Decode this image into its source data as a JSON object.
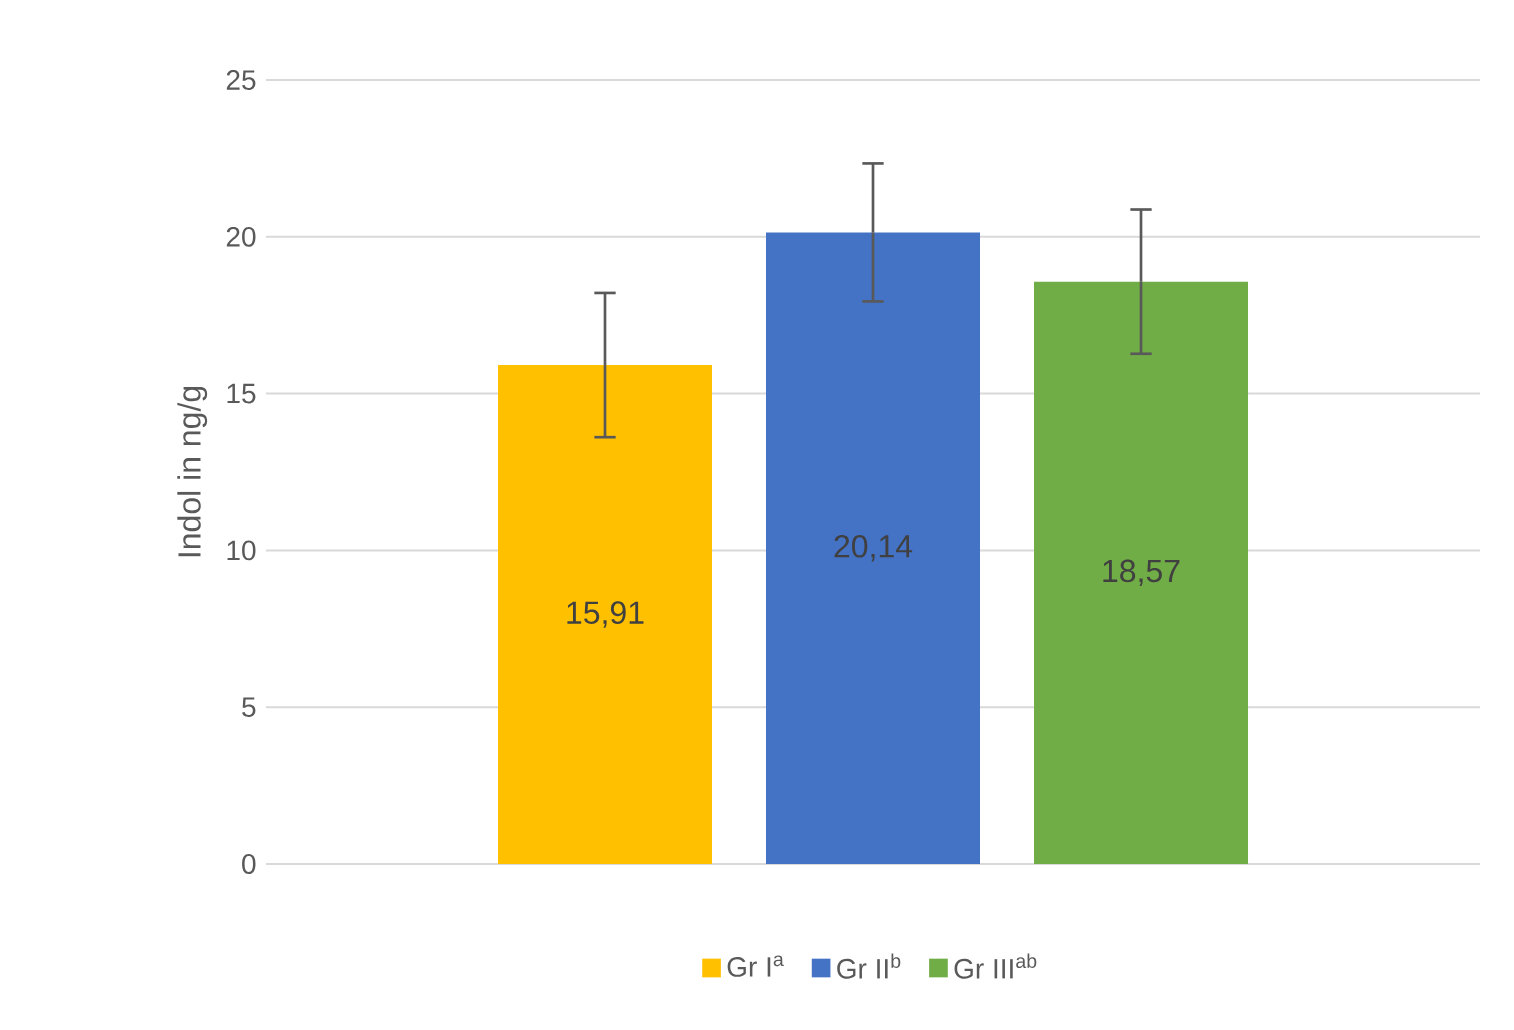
{
  "chart_data": {
    "type": "bar",
    "ylabel": "Indol in ng/g",
    "categories": [
      null
    ],
    "series": [
      {
        "name": "Gr I$^{a}$",
        "color": "#ffc000",
        "values": [
          15.91
        ],
        "errors": [
          2.3
        ],
        "value_labels": [
          "15,91"
        ]
      },
      {
        "name": "Gr II$^{b}$",
        "color": "#4472c4",
        "values": [
          20.14
        ],
        "errors": [
          2.2
        ],
        "value_labels": [
          "20,14"
        ]
      },
      {
        "name": "Gr III$^{ab}$",
        "color": "#70ad47",
        "values": [
          18.57
        ],
        "errors": [
          2.3
        ],
        "value_labels": [
          "18,57"
        ]
      }
    ],
    "ylim": [
      0,
      25
    ],
    "yticks": [
      0,
      5,
      10,
      15,
      20,
      25
    ],
    "grid": "y",
    "legend": "bottom",
    "tick_labels": "y"
  }
}
